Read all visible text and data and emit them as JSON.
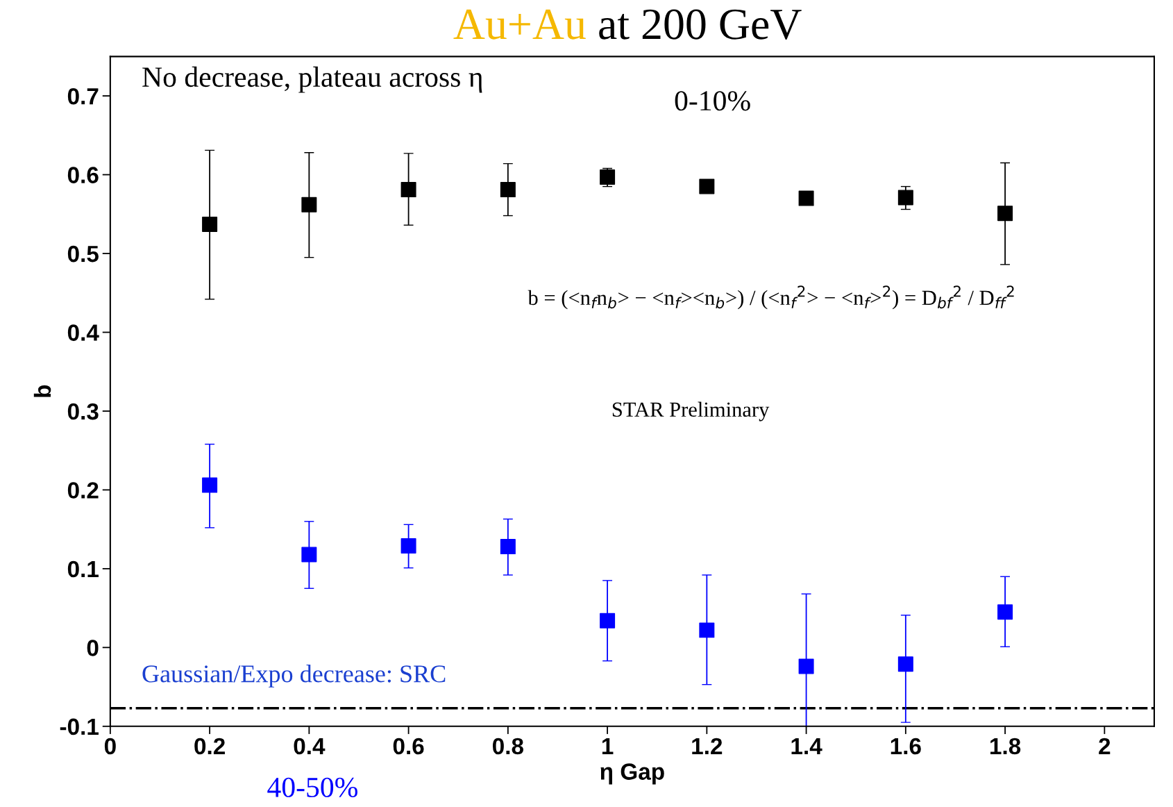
{
  "chart_data": {
    "type": "scatter",
    "title": "Au+Au at 200 GeV",
    "xlabel": "η Gap",
    "ylabel": "b",
    "x": [
      0.2,
      0.4,
      0.6,
      0.8,
      1.0,
      1.2,
      1.4,
      1.6,
      1.8
    ],
    "series": [
      {
        "name": "0-10%",
        "color": "#000000",
        "values": [
          0.537,
          0.562,
          0.581,
          0.581,
          0.597,
          0.585,
          0.57,
          0.571,
          0.551
        ],
        "errors": [
          [
            0.442,
            0.631
          ],
          [
            0.495,
            0.628
          ],
          [
            0.536,
            0.627
          ],
          [
            0.548,
            0.614
          ],
          [
            0.585,
            0.608
          ],
          [
            0.578,
            0.592
          ],
          null,
          [
            0.556,
            0.585
          ],
          [
            0.486,
            0.615
          ]
        ]
      },
      {
        "name": "40-50%",
        "color": "#0000ff",
        "values": [
          0.206,
          0.118,
          0.129,
          0.128,
          0.034,
          0.022,
          -0.024,
          -0.021,
          0.045
        ],
        "errors": [
          [
            0.152,
            0.258
          ],
          [
            0.075,
            0.16
          ],
          [
            0.101,
            0.156
          ],
          [
            0.092,
            0.163
          ],
          [
            -0.017,
            0.085
          ],
          [
            -0.047,
            0.092
          ],
          [
            -0.1,
            0.068
          ],
          [
            -0.095,
            0.041
          ],
          [
            0.001,
            0.09
          ]
        ]
      }
    ],
    "marker": "square",
    "xlim": [
      0,
      2.1
    ],
    "ylim": [
      -0.1,
      0.75
    ],
    "xticks": [
      0,
      0.2,
      0.4,
      0.6,
      0.8,
      1,
      1.2,
      1.4,
      1.6,
      1.8,
      2
    ],
    "yticks": [
      -0.1,
      0,
      0.1,
      0.2,
      0.3,
      0.4,
      0.5,
      0.6,
      0.7
    ],
    "ref_lines": [
      {
        "axis": "y",
        "value": -0.077,
        "color": "#000000",
        "line_style": "dashdot"
      }
    ],
    "annotations": [
      "No decrease, plateau across η",
      "STAR Preliminary",
      "b = (<n$_{f}$n$_{b}$> − <n$_{f}$><n$_{b}$>) / (<n$_{f}$$^{2}$> − <n$_{f}$>$^{2}$) = D$_{bf}$$^{2}$ / D$_{ff}$$^{2}$",
      "Gaussian/Expo decrease: SRC"
    ],
    "grid": false
  }
}
